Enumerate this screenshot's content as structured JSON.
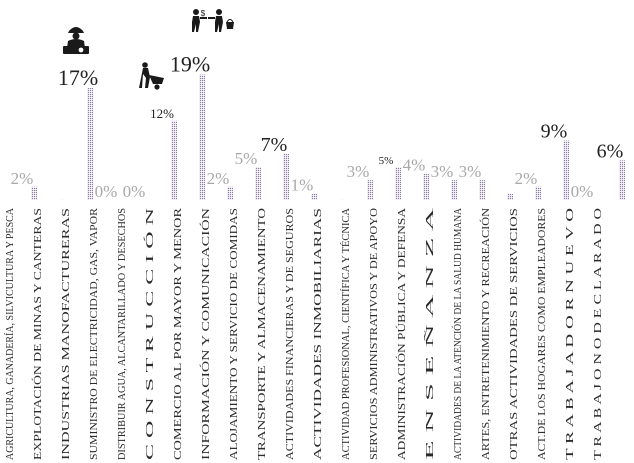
{
  "chart_data": {
    "type": "bar",
    "colors": {
      "bar": "#9b8ab3",
      "label_light": "#a8a8a8",
      "label_dark": "#222222"
    },
    "grid": false,
    "legend": "none",
    "ylim": [
      0,
      20
    ],
    "categories": [
      "AGRICULTURA, GANADERÍA, SILVICULTURA Y PESCA",
      "EXPLOTACIÓN DE MINAS Y CANTERAS",
      "INDUSTRIAS MANOFACTURERAS",
      "SUMINISTRO DE ELECTRICIDAD, GAS, VAPOR",
      "DISTRIBUIR AGUA, ALCANTARILLADO Y DESECHOS",
      "C O N S T R U C C I Ó N",
      "COMERCIO AL POR MAYOR Y MENOR",
      "INFORMACIÓN Y COMUNICACIÓN",
      "ALOJAMIENTO Y SERVICIO DE COMIDAS",
      "TRANSPORTE Y ALMACENAMIENTO",
      "ACTIVIDADES FINANCIERAS Y DE SEGUROS",
      "ACTIVIDADES INMOBILIARIAS",
      "ACTIVIDAD PROFESIONAL, CIENTÍFICA Y TÉCNICA",
      "SERVICIOS ADMINISTRATIVOS Y DE APOYO",
      "ADMINISTRACIÓN PÚBLICA Y DEFENSA",
      "E N S E Ñ A N Z A",
      "ACTIVIDADES DE LA ATENCIÓN DE LA SALUD HUMANA",
      "ARTES, ENTRETENIMIENTO Y RECREACIÓN",
      "OTRAS ACTIVIDADES DE SERVICIOS",
      "ACT.DE LOS HOGARES COMO EMPLEADORES",
      "T R A B A J A D O R N U E V O",
      "T R A B A J O N O D E C L A R A D O"
    ],
    "values": [
      2,
      0.1,
      17,
      0,
      0,
      12,
      19,
      2,
      5,
      7,
      1,
      0.1,
      3,
      5,
      4,
      3,
      3,
      1,
      2,
      9,
      0,
      6
    ],
    "data_labels": [
      "2%",
      "",
      "17%",
      "0%",
      "0%",
      "12%",
      "19%",
      "2%",
      "5%",
      "7%",
      "1%",
      "",
      "3%",
      "5%",
      "4%",
      "3%",
      "3%",
      "",
      "2%",
      "9%",
      "0%",
      "6%"
    ],
    "label_style": [
      "light",
      "light",
      "dark",
      "light",
      "light",
      "dark",
      "dark",
      "light",
      "light",
      "dark",
      "light",
      "light",
      "light",
      "dark",
      "light",
      "light",
      "light",
      "light",
      "light",
      "dark",
      "light",
      "dark"
    ],
    "icons": [
      "worker-with-machine-icon",
      "worker-with-wheelbarrow-icon",
      "merchants-exchange-icon"
    ]
  }
}
